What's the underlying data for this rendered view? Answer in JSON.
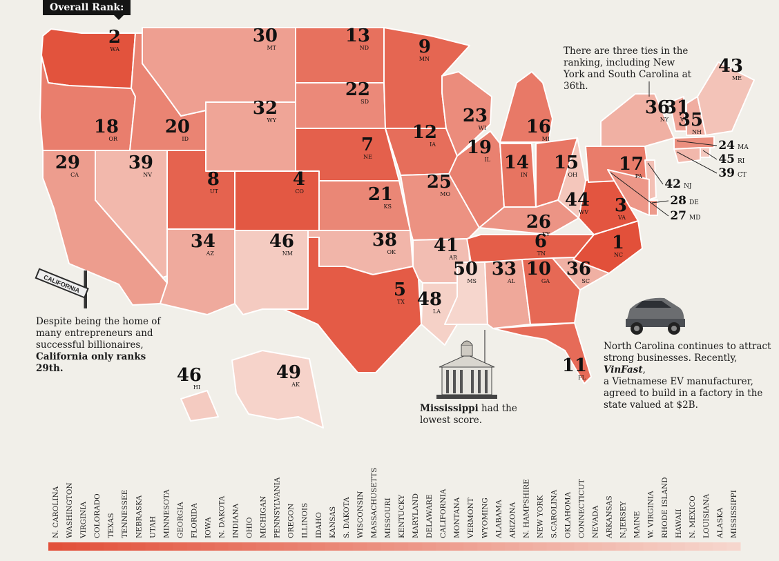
{
  "header": {
    "badge": "Overall Rank:"
  },
  "annotations": {
    "ties": "There are three ties in the ranking, including New York and South Carolina at 36th.",
    "california_line1": "Despite being the home of",
    "california_line2": "many entrepreneurs and",
    "california_line3": "successful billionaires,",
    "california_line4": "California only ranks 29th.",
    "california_sign": "CALIFORNIA",
    "nc_line1": "North Carolina continues to attract",
    "nc_line2": "strong businesses. Recently,",
    "nc_vinfast": "VinFast",
    "nc_line3": "a Vietnamese EV manufacturer,",
    "nc_line4": "agreed to build in a factory in the",
    "nc_line5": "state valued at $2B.",
    "ms_bold": "Mississippi",
    "ms_rest": " had the",
    "ms_line2": "lowest score."
  },
  "colors": {
    "background": "#f1efe9",
    "rank_high": "#e2503a",
    "rank_low": "#f6d6cd",
    "border": "#ffffff"
  },
  "states": [
    {
      "abbr": "WA",
      "rank": "2"
    },
    {
      "abbr": "OR",
      "rank": "18"
    },
    {
      "abbr": "CA",
      "rank": "29"
    },
    {
      "abbr": "NV",
      "rank": "39"
    },
    {
      "abbr": "ID",
      "rank": "20"
    },
    {
      "abbr": "MT",
      "rank": "30"
    },
    {
      "abbr": "WY",
      "rank": "32"
    },
    {
      "abbr": "UT",
      "rank": "8"
    },
    {
      "abbr": "CO",
      "rank": "4"
    },
    {
      "abbr": "AZ",
      "rank": "34"
    },
    {
      "abbr": "NM",
      "rank": "46"
    },
    {
      "abbr": "ND",
      "rank": "13"
    },
    {
      "abbr": "SD",
      "rank": "22"
    },
    {
      "abbr": "NE",
      "rank": "7"
    },
    {
      "abbr": "KS",
      "rank": "21"
    },
    {
      "abbr": "OK",
      "rank": "38"
    },
    {
      "abbr": "TX",
      "rank": "5"
    },
    {
      "abbr": "MN",
      "rank": "9"
    },
    {
      "abbr": "IA",
      "rank": "12"
    },
    {
      "abbr": "MO",
      "rank": "25"
    },
    {
      "abbr": "AR",
      "rank": "41"
    },
    {
      "abbr": "LA",
      "rank": "48"
    },
    {
      "abbr": "WI",
      "rank": "23"
    },
    {
      "abbr": "IL",
      "rank": "19"
    },
    {
      "abbr": "MI",
      "rank": "16"
    },
    {
      "abbr": "IN",
      "rank": "14"
    },
    {
      "abbr": "OH",
      "rank": "15"
    },
    {
      "abbr": "KY",
      "rank": "26"
    },
    {
      "abbr": "TN",
      "rank": "6"
    },
    {
      "abbr": "MS",
      "rank": "50"
    },
    {
      "abbr": "AL",
      "rank": "33"
    },
    {
      "abbr": "GA",
      "rank": "10"
    },
    {
      "abbr": "FL",
      "rank": "11"
    },
    {
      "abbr": "SC",
      "rank": "36"
    },
    {
      "abbr": "NC",
      "rank": "1"
    },
    {
      "abbr": "VA",
      "rank": "3"
    },
    {
      "abbr": "WV",
      "rank": "44"
    },
    {
      "abbr": "PA",
      "rank": "17"
    },
    {
      "abbr": "NY",
      "rank": "36"
    },
    {
      "abbr": "VT",
      "rank": "31"
    },
    {
      "abbr": "NH",
      "rank": "35"
    },
    {
      "abbr": "ME",
      "rank": "43"
    },
    {
      "abbr": "MA",
      "rank": "24"
    },
    {
      "abbr": "RI",
      "rank": "45"
    },
    {
      "abbr": "CT",
      "rank": "39"
    },
    {
      "abbr": "NJ",
      "rank": "42"
    },
    {
      "abbr": "DE",
      "rank": "28"
    },
    {
      "abbr": "MD",
      "rank": "27"
    },
    {
      "abbr": "HI",
      "rank": "46"
    },
    {
      "abbr": "AK",
      "rank": "49"
    }
  ],
  "legend": [
    "N. CAROLINA",
    "WASHINGTON",
    "VIRGINIA",
    "COLORADO",
    "TEXAS",
    "TENNESSEE",
    "NEBRASKA",
    "UTAH",
    "MINNESOTA",
    "GEORGIA",
    "FLORIDA",
    "IOWA",
    "N. DAKOTA",
    "INDIANA",
    "OHIO",
    "MICHIGAN",
    "PENNSYLVANIA",
    "OREGON",
    "ILLINOIS",
    "IDAHO",
    "KANSAS",
    "S. DAKOTA",
    "WISCONSIN",
    "MASSACHUSETTS",
    "MISSOURI",
    "KENTUCKY",
    "MARYLAND",
    "DELAWARE",
    "CALIFORNIA",
    "MONTANA",
    "VERMONT",
    "WYOMING",
    "ALABAMA",
    "ARIZONA",
    "N. HAMPSHIRE",
    "NEW YORK",
    "S.CAROLINA",
    "OKLAHOMA",
    "CONNECTICUT",
    "NEVADA",
    "ARKANSAS",
    "N.JERSEY",
    "MAINE",
    "W. VIRGINIA",
    "RHODE ISLAND",
    "HAWAII",
    "N. MEXICO",
    "LOUISIANA",
    "ALASKA",
    "MISSISSIPPI"
  ]
}
